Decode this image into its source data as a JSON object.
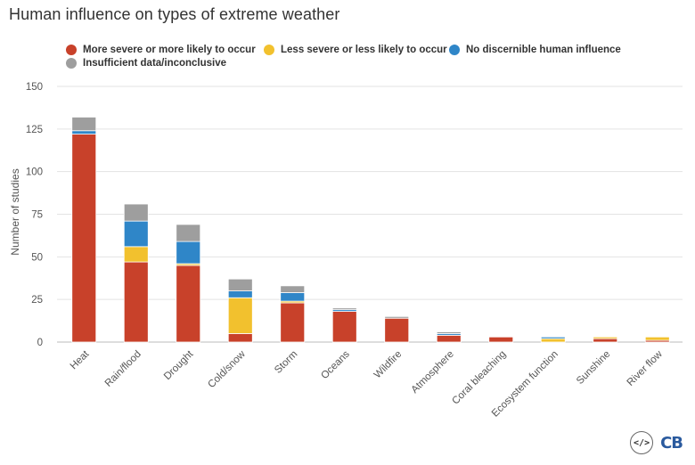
{
  "chart_data": {
    "type": "bar",
    "stacked": true,
    "title": "Human influence on types of extreme weather",
    "xlabel": "",
    "ylabel": "Number of studies",
    "ylim": [
      0,
      150
    ],
    "yticks": [
      0,
      25,
      50,
      75,
      100,
      125,
      150
    ],
    "grid": true,
    "legend_position": "top",
    "categories": [
      "Heat",
      "Rain/flood",
      "Drought",
      "Cold/snow",
      "Storm",
      "Oceans",
      "Wildfire",
      "Atmosphere",
      "Coral bleaching",
      "Ecosystem function",
      "Sunshine",
      "River flow"
    ],
    "series": [
      {
        "name": "More severe or more likely to occur",
        "color": "#c8412a",
        "values": [
          122,
          47,
          45,
          5,
          23,
          18,
          14,
          4,
          3,
          0,
          2,
          1
        ]
      },
      {
        "name": "Less severe or less likely to occur",
        "color": "#f2c12e",
        "values": [
          0,
          9,
          1,
          21,
          1,
          0,
          0,
          0,
          0,
          2,
          1,
          2
        ]
      },
      {
        "name": "No discernible human influence",
        "color": "#2f86c8",
        "values": [
          2,
          15,
          13,
          4,
          5,
          1,
          0,
          1,
          0,
          1,
          0,
          0
        ]
      },
      {
        "name": "Insufficient data/inconclusive",
        "color": "#9e9e9e",
        "values": [
          8,
          10,
          10,
          7,
          4,
          1,
          1,
          1,
          0,
          0,
          0,
          0
        ]
      }
    ]
  },
  "branding": {
    "embed_label": "</>",
    "logo_text": "CB"
  }
}
